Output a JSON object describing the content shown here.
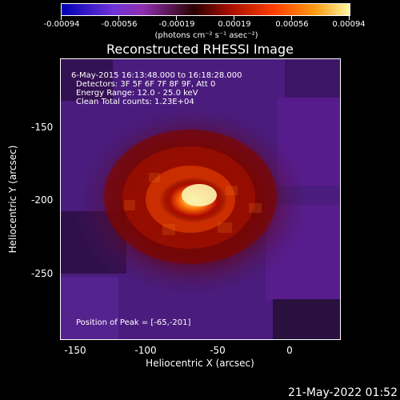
{
  "colorbar": {
    "tick_labels": [
      "-0.00094",
      "-0.00056",
      "-0.00019",
      "0.00019",
      "0.00056",
      "0.00094"
    ],
    "units_label": "(photons cm⁻² s⁻¹ asec⁻²)"
  },
  "title": "Reconstructed RHESSI Image",
  "image": {
    "overlay": {
      "time_range": "6-May-2015 16:13:48.000 to 16:18:28.000",
      "detectors": "Detectors: 3F 5F 6F 7F 8F 9F, Att 0",
      "energy": "Energy Range: 12.0 - 25.0 keV",
      "clean": "Clean    Total counts: 1.23E+04",
      "peak": "Position of Peak = [-65,-201]"
    }
  },
  "axes": {
    "x_label": "Heliocentric X (arcsec)",
    "y_label": "Heliocentric Y (arcsec)",
    "x_ticks": [
      "-150",
      "-100",
      "-50",
      "0"
    ],
    "y_ticks": [
      "-150",
      "-200",
      "-250"
    ]
  },
  "footer": {
    "date": "21-May-2022 01:52"
  },
  "colors": {
    "background": "#000000",
    "low": "#4b1d7f",
    "mid": "#b50e00",
    "high": "#ffd21f",
    "white": "#ffffff"
  }
}
